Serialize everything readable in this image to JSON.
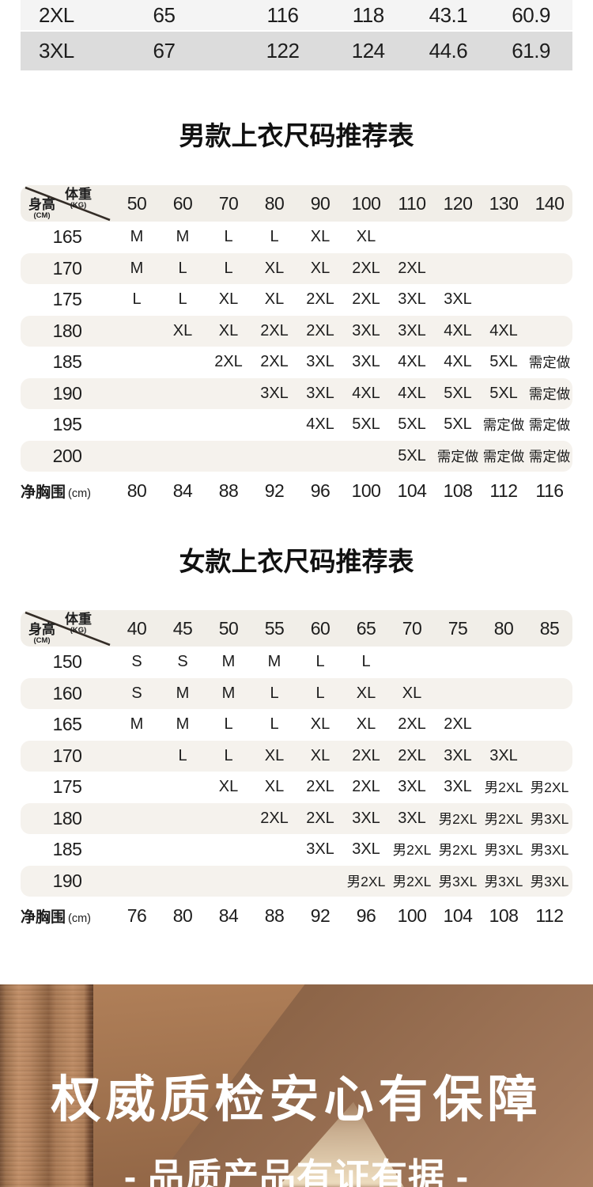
{
  "colors": {
    "text": "#1d1d1d",
    "stripe": "#f5f2ed",
    "header_bg": "#f1eee8",
    "row_alt_light": "#f4f4f4",
    "row_alt_dark": "#dcdcdc",
    "banner_base": "#8a6246",
    "banner_light": "#c18f68",
    "banner_beam": "#f2e3c4",
    "banner_text": "#ffffff"
  },
  "top_table": {
    "rows": [
      [
        "2XL",
        "65",
        "116",
        "118",
        "43.1",
        "60.9"
      ],
      [
        "3XL",
        "67",
        "122",
        "124",
        "44.6",
        "61.9"
      ]
    ]
  },
  "men_table": {
    "title": "男款上衣尺码推荐表",
    "corner": {
      "top_label": "体重",
      "top_unit": "(KG)",
      "bottom_label": "身高",
      "bottom_unit": "(CM)"
    },
    "weights": [
      "50",
      "60",
      "70",
      "80",
      "90",
      "100",
      "110",
      "120",
      "130",
      "140"
    ],
    "rows": [
      {
        "height": "165",
        "sizes": [
          "M",
          "M",
          "L",
          "L",
          "XL",
          "XL",
          "",
          "",
          "",
          ""
        ]
      },
      {
        "height": "170",
        "sizes": [
          "M",
          "L",
          "L",
          "XL",
          "XL",
          "2XL",
          "2XL",
          "",
          "",
          ""
        ]
      },
      {
        "height": "175",
        "sizes": [
          "L",
          "L",
          "XL",
          "XL",
          "2XL",
          "2XL",
          "3XL",
          "3XL",
          "",
          ""
        ]
      },
      {
        "height": "180",
        "sizes": [
          "",
          "XL",
          "XL",
          "2XL",
          "2XL",
          "3XL",
          "3XL",
          "4XL",
          "4XL",
          ""
        ]
      },
      {
        "height": "185",
        "sizes": [
          "",
          "",
          "2XL",
          "2XL",
          "3XL",
          "3XL",
          "4XL",
          "4XL",
          "5XL",
          "需定做"
        ]
      },
      {
        "height": "190",
        "sizes": [
          "",
          "",
          "",
          "3XL",
          "3XL",
          "4XL",
          "4XL",
          "5XL",
          "5XL",
          "需定做"
        ]
      },
      {
        "height": "195",
        "sizes": [
          "",
          "",
          "",
          "",
          "4XL",
          "5XL",
          "5XL",
          "5XL",
          "需定做",
          "需定做"
        ]
      },
      {
        "height": "200",
        "sizes": [
          "",
          "",
          "",
          "",
          "",
          "",
          "5XL",
          "需定做",
          "需定做",
          "需定做"
        ]
      }
    ],
    "chest": {
      "label": "净胸围",
      "unit": "(cm)",
      "values": [
        "80",
        "84",
        "88",
        "92",
        "96",
        "100",
        "104",
        "108",
        "112",
        "116"
      ]
    }
  },
  "women_table": {
    "title": "女款上衣尺码推荐表",
    "corner": {
      "top_label": "体重",
      "top_unit": "(KG)",
      "bottom_label": "身高",
      "bottom_unit": "(CM)"
    },
    "weights": [
      "40",
      "45",
      "50",
      "55",
      "60",
      "65",
      "70",
      "75",
      "80",
      "85"
    ],
    "rows": [
      {
        "height": "150",
        "sizes": [
          "S",
          "S",
          "M",
          "M",
          "L",
          "L",
          "",
          "",
          "",
          ""
        ]
      },
      {
        "height": "160",
        "sizes": [
          "S",
          "M",
          "M",
          "L",
          "L",
          "XL",
          "XL",
          "",
          "",
          ""
        ]
      },
      {
        "height": "165",
        "sizes": [
          "M",
          "M",
          "L",
          "L",
          "XL",
          "XL",
          "2XL",
          "2XL",
          "",
          ""
        ]
      },
      {
        "height": "170",
        "sizes": [
          "",
          "L",
          "L",
          "XL",
          "XL",
          "2XL",
          "2XL",
          "3XL",
          "3XL",
          ""
        ]
      },
      {
        "height": "175",
        "sizes": [
          "",
          "",
          "XL",
          "XL",
          "2XL",
          "2XL",
          "3XL",
          "3XL",
          "男2XL",
          "男2XL"
        ]
      },
      {
        "height": "180",
        "sizes": [
          "",
          "",
          "",
          "2XL",
          "2XL",
          "3XL",
          "3XL",
          "男2XL",
          "男2XL",
          "男3XL"
        ]
      },
      {
        "height": "185",
        "sizes": [
          "",
          "",
          "",
          "",
          "3XL",
          "3XL",
          "男2XL",
          "男2XL",
          "男3XL",
          "男3XL"
        ]
      },
      {
        "height": "190",
        "sizes": [
          "",
          "",
          "",
          "",
          "",
          "男2XL",
          "男2XL",
          "男3XL",
          "男3XL",
          "男3XL"
        ]
      }
    ],
    "chest": {
      "label": "净胸围",
      "unit": "(cm)",
      "values": [
        "76",
        "80",
        "84",
        "88",
        "92",
        "96",
        "100",
        "104",
        "108",
        "112"
      ]
    }
  },
  "banner": {
    "title": "权威质检安心有保障",
    "subtitle": "- 品质产品有证有据 -"
  }
}
